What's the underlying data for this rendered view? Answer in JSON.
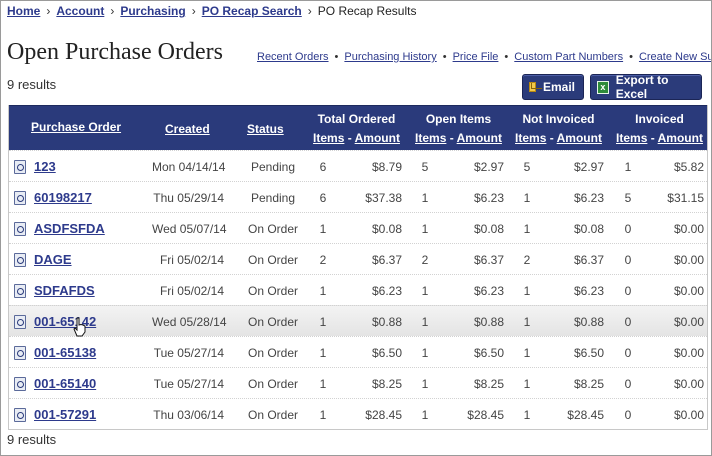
{
  "breadcrumb": {
    "items": [
      "Home",
      "Account",
      "Purchasing",
      "PO Recap Search"
    ],
    "current": "PO Recap Results",
    "separator": "›"
  },
  "page": {
    "title": "Open Purchase Orders",
    "results_top": "9 results",
    "results_bottom": "9 results"
  },
  "toplinks": [
    "Recent Orders",
    "Purchasing History",
    "Price File",
    "Custom Part Numbers",
    "Create New Su"
  ],
  "buttons": {
    "email": "Email",
    "excel": "Export to Excel"
  },
  "headers": {
    "po": "Purchase Order",
    "created": "Created",
    "status": "Status",
    "groups": {
      "total": "Total Ordered",
      "open": "Open Items",
      "notinv": "Not Invoiced",
      "inv": "Invoiced"
    },
    "items": "Items",
    "dash": "-",
    "amount": "Amount"
  },
  "rows": [
    {
      "po": "123",
      "created": "Mon 04/14/14",
      "status": "Pending",
      "tot_items": "6",
      "tot_amt": "$8.79",
      "open_items": "5",
      "open_amt": "$2.97",
      "ni_items": "5",
      "ni_amt": "$2.97",
      "inv_items": "1",
      "inv_amt": "$5.82"
    },
    {
      "po": "60198217",
      "created": "Thu 05/29/14",
      "status": "Pending",
      "tot_items": "6",
      "tot_amt": "$37.38",
      "open_items": "1",
      "open_amt": "$6.23",
      "ni_items": "1",
      "ni_amt": "$6.23",
      "inv_items": "5",
      "inv_amt": "$31.15"
    },
    {
      "po": "ASDFSFDA",
      "created": "Wed 05/07/14",
      "status": "On Order",
      "tot_items": "1",
      "tot_amt": "$0.08",
      "open_items": "1",
      "open_amt": "$0.08",
      "ni_items": "1",
      "ni_amt": "$0.08",
      "inv_items": "0",
      "inv_amt": "$0.00"
    },
    {
      "po": "DAGE",
      "created": "Fri 05/02/14",
      "status": "On Order",
      "tot_items": "2",
      "tot_amt": "$6.37",
      "open_items": "2",
      "open_amt": "$6.37",
      "ni_items": "2",
      "ni_amt": "$6.37",
      "inv_items": "0",
      "inv_amt": "$0.00"
    },
    {
      "po": "SDFAFDS",
      "created": "Fri 05/02/14",
      "status": "On Order",
      "tot_items": "1",
      "tot_amt": "$6.23",
      "open_items": "1",
      "open_amt": "$6.23",
      "ni_items": "1",
      "ni_amt": "$6.23",
      "inv_items": "0",
      "inv_amt": "$0.00"
    },
    {
      "po": "001-65142",
      "created": "Wed 05/28/14",
      "status": "On Order",
      "tot_items": "1",
      "tot_amt": "$0.88",
      "open_items": "1",
      "open_amt": "$0.88",
      "ni_items": "1",
      "ni_amt": "$0.88",
      "inv_items": "0",
      "inv_amt": "$0.00"
    },
    {
      "po": "001-65138",
      "created": "Tue 05/27/14",
      "status": "On Order",
      "tot_items": "1",
      "tot_amt": "$6.50",
      "open_items": "1",
      "open_amt": "$6.50",
      "ni_items": "1",
      "ni_amt": "$6.50",
      "inv_items": "0",
      "inv_amt": "$0.00"
    },
    {
      "po": "001-65140",
      "created": "Tue 05/27/14",
      "status": "On Order",
      "tot_items": "1",
      "tot_amt": "$8.25",
      "open_items": "1",
      "open_amt": "$8.25",
      "ni_items": "1",
      "ni_amt": "$8.25",
      "inv_items": "0",
      "inv_amt": "$0.00"
    },
    {
      "po": "001-57291",
      "created": "Thu 03/06/14",
      "status": "On Order",
      "tot_items": "1",
      "tot_amt": "$28.45",
      "open_items": "1",
      "open_amt": "$28.45",
      "ni_items": "1",
      "ni_amt": "$28.45",
      "inv_items": "0",
      "inv_amt": "$0.00"
    }
  ],
  "icons": {
    "row": "document-search-icon",
    "email": "envelope-icon",
    "excel": "excel-icon",
    "cursor": "hand-pointer-icon"
  },
  "colors": {
    "header_bg": "#2a3a7b",
    "link": "#2d3a8c",
    "button_bg": "#2b3b7a",
    "row_hover": "#e9e9e9"
  }
}
